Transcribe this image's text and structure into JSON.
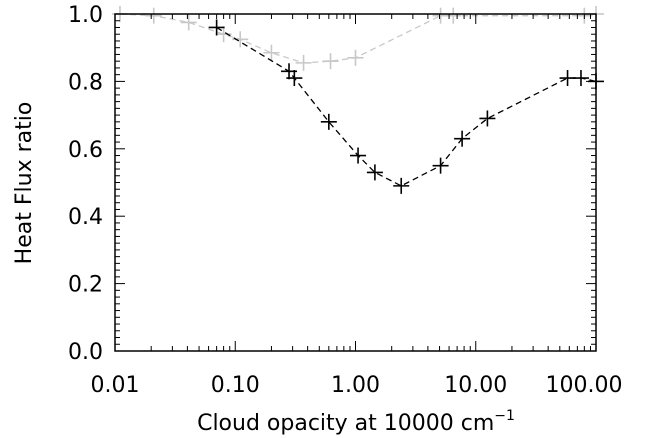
{
  "chart_data": {
    "type": "scatter",
    "xlabel": "Cloud opacity at 10000 cm",
    "xlabel_superscript": "−1",
    "ylabel": "Heat Flux ratio",
    "xscale": "log",
    "xlim": [
      0.01,
      100
    ],
    "ylim": [
      0,
      1.0
    ],
    "x_tick_labels": [
      "0.01",
      "0.10",
      "1.00",
      "10.00",
      "100.00"
    ],
    "y_tick_labels": [
      "0.0",
      "0.2",
      "0.4",
      "0.6",
      "0.8",
      "1.0"
    ],
    "x_ticks": [
      0.01,
      0.1,
      1,
      10,
      100
    ],
    "y_ticks": [
      0,
      0.2,
      0.4,
      0.6,
      0.8,
      1.0
    ],
    "grid": false,
    "series": [
      {
        "color": "#000000",
        "line_style": "dashed",
        "marker": "plus",
        "points": [
          {
            "x": 0.07,
            "y": 0.96
          },
          {
            "x": 0.28,
            "y": 0.83
          },
          {
            "x": 0.31,
            "y": 0.81
          },
          {
            "x": 0.6,
            "y": 0.68
          },
          {
            "x": 1.05,
            "y": 0.58
          },
          {
            "x": 1.45,
            "y": 0.53
          },
          {
            "x": 2.4,
            "y": 0.49
          },
          {
            "x": 5.1,
            "y": 0.55
          },
          {
            "x": 7.7,
            "y": 0.63
          },
          {
            "x": 12.5,
            "y": 0.69
          },
          {
            "x": 58,
            "y": 0.81
          },
          {
            "x": 75,
            "y": 0.81
          },
          {
            "x": 100,
            "y": 0.8
          }
        ]
      },
      {
        "color": "#c8c8c8",
        "line_style": "dashed",
        "marker": "plus",
        "points": [
          {
            "x": 0.011,
            "y": 1.0
          },
          {
            "x": 0.021,
            "y": 0.995
          },
          {
            "x": 0.041,
            "y": 0.975
          },
          {
            "x": 0.08,
            "y": 0.94
          },
          {
            "x": 0.11,
            "y": 0.925
          },
          {
            "x": 0.2,
            "y": 0.885
          },
          {
            "x": 0.37,
            "y": 0.855
          },
          {
            "x": 0.62,
            "y": 0.86
          },
          {
            "x": 1.0,
            "y": 0.87
          },
          {
            "x": 5.1,
            "y": 0.995
          },
          {
            "x": 6.5,
            "y": 0.995
          },
          {
            "x": 80,
            "y": 0.995
          },
          {
            "x": 100,
            "y": 1.0
          }
        ]
      }
    ]
  }
}
